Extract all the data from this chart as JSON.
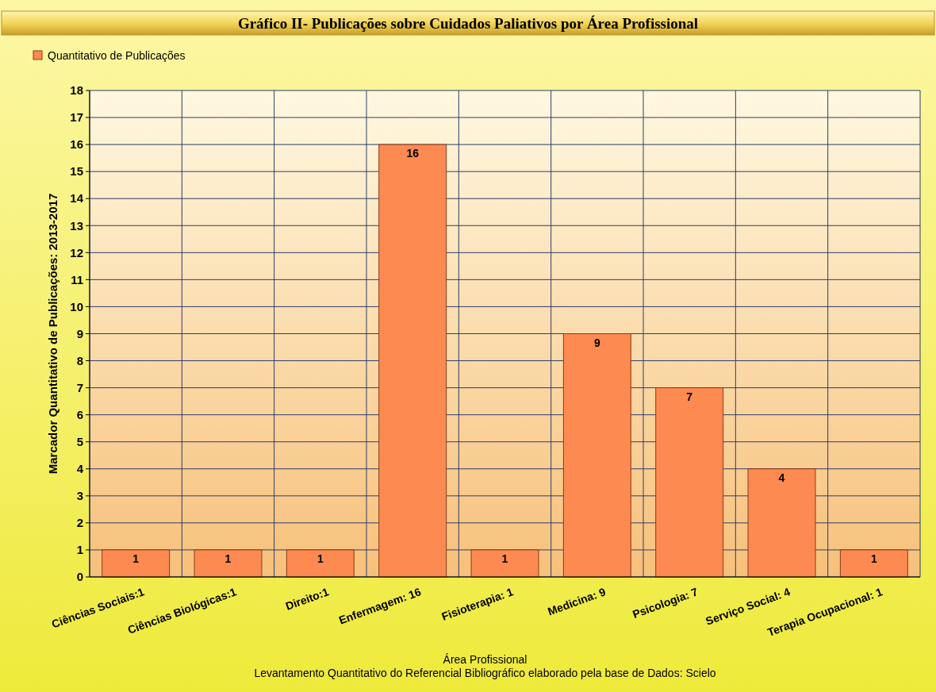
{
  "chart_data": {
    "type": "bar",
    "title": "Gráfico II-  Publicações sobre Cuidados Paliativos por Área Profissional",
    "categories": [
      "Ciências Sociais:1",
      "Ciências Biológicas:1",
      "Direito:1",
      "Enfermagem: 16",
      "Fisioterapia: 1",
      "Medicina: 9",
      "Psicologia: 7",
      "Serviço Social: 4",
      "Terapia Ocupacional: 1"
    ],
    "series": [
      {
        "name": "Quantitativo de Publicações",
        "color": "#fd8a50",
        "values": [
          1,
          1,
          1,
          16,
          1,
          9,
          7,
          4,
          1
        ]
      }
    ],
    "ylim": [
      0,
      18
    ],
    "yticks": [
      0,
      1,
      2,
      3,
      4,
      5,
      6,
      7,
      8,
      9,
      10,
      11,
      12,
      13,
      14,
      15,
      16,
      17,
      18
    ],
    "xlabel": "Área Profissional",
    "ylabel": "Marcador Quantitativo de Publicações: 2013-2017",
    "annotations": [
      "Levantamento Quantitativo do Referencial Bibliográfico elaborado pela base de Dados: Scielo"
    ],
    "grid": true,
    "legend": "top left",
    "data_labels": true
  }
}
